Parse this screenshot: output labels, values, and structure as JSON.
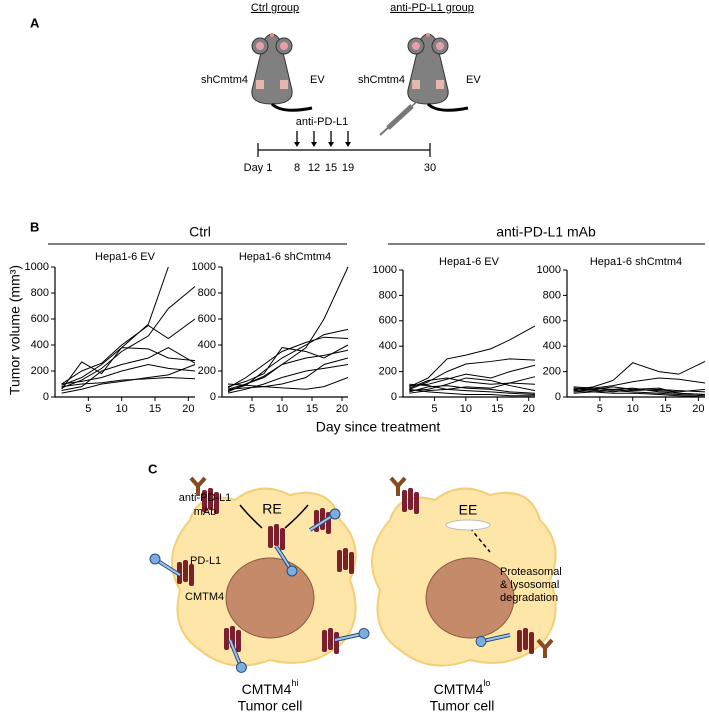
{
  "panel_a": {
    "label": "A",
    "ctrl_group": "Ctrl group",
    "anti_group": "anti-PD-L1 group",
    "left_mouse": [
      "shCmtm4",
      "EV"
    ],
    "right_mouse": [
      "shCmtm4",
      "EV"
    ],
    "treatment": "anti-PD-L1",
    "timeline": [
      "Day 1",
      "8",
      "12",
      "15",
      "19",
      "30"
    ]
  },
  "panel_b": {
    "label": "B",
    "groups": [
      "Ctrl",
      "anti-PD-L1 mAb"
    ],
    "y_label": "Tumor volume (mm³)",
    "x_label": "Day since treatment"
  },
  "chart_data": [
    {
      "type": "line",
      "title": "Hepa1-6 EV",
      "color": "#000000",
      "x": [
        1,
        4,
        7,
        10,
        14,
        17,
        21
      ],
      "xlim": [
        0,
        21
      ],
      "xticks": [
        5,
        10,
        15,
        20
      ],
      "ylim": [
        0,
        1000
      ],
      "yticks": [
        0,
        200,
        400,
        600,
        800,
        1000
      ],
      "series": [
        {
          "values": [
            90,
            150,
            250,
            380,
            560,
            1000,
            null
          ]
        },
        {
          "values": [
            70,
            130,
            220,
            350,
            470,
            680,
            850
          ]
        },
        {
          "values": [
            100,
            200,
            260,
            400,
            550,
            450,
            600
          ]
        },
        {
          "values": [
            60,
            270,
            180,
            380,
            370,
            300,
            280
          ]
        },
        {
          "values": [
            50,
            80,
            200,
            250,
            300,
            380,
            260
          ]
        },
        {
          "values": [
            100,
            120,
            150,
            200,
            250,
            220,
            200
          ]
        },
        {
          "values": [
            30,
            60,
            100,
            120,
            150,
            170,
            250
          ]
        },
        {
          "values": [
            80,
            100,
            110,
            130,
            140,
            150,
            140
          ]
        }
      ]
    },
    {
      "type": "line",
      "title": "Hepa1-6 shCmtm4",
      "color": "#000000",
      "x": [
        1,
        4,
        7,
        10,
        14,
        17,
        21
      ],
      "xlim": [
        0,
        21
      ],
      "xticks": [
        5,
        10,
        15,
        20
      ],
      "ylim": [
        0,
        1000
      ],
      "yticks": [
        0,
        200,
        400,
        600,
        800,
        1000
      ],
      "series": [
        {
          "values": [
            60,
            100,
            160,
            250,
            380,
            600,
            1000
          ]
        },
        {
          "values": [
            50,
            90,
            200,
            300,
            400,
            480,
            520
          ]
        },
        {
          "values": [
            70,
            150,
            250,
            350,
            420,
            460,
            450
          ]
        },
        {
          "values": [
            80,
            120,
            180,
            380,
            350,
            300,
            400
          ]
        },
        {
          "values": [
            40,
            100,
            150,
            250,
            300,
            320,
            360
          ]
        },
        {
          "values": [
            100,
            90,
            80,
            100,
            150,
            250,
            300
          ]
        },
        {
          "values": [
            60,
            70,
            80,
            70,
            60,
            80,
            150
          ]
        },
        {
          "values": [
            30,
            60,
            100,
            150,
            200,
            220,
            250
          ]
        }
      ]
    },
    {
      "type": "line",
      "title": "Hepa1-6 EV",
      "color": "#000000",
      "x": [
        1,
        4,
        7,
        10,
        14,
        17,
        21
      ],
      "xlim": [
        0,
        21
      ],
      "xticks": [
        5,
        10,
        15,
        20
      ],
      "ylim": [
        0,
        1000
      ],
      "yticks": [
        0,
        200,
        400,
        600,
        800,
        1000
      ],
      "series": [
        {
          "values": [
            80,
            150,
            300,
            330,
            380,
            450,
            560
          ]
        },
        {
          "values": [
            60,
            120,
            200,
            260,
            280,
            300,
            290
          ]
        },
        {
          "values": [
            90,
            100,
            140,
            180,
            150,
            200,
            250
          ]
        },
        {
          "values": [
            70,
            130,
            150,
            120,
            100,
            110,
            100
          ]
        },
        {
          "values": [
            50,
            60,
            100,
            150,
            130,
            90,
            50
          ]
        },
        {
          "values": [
            40,
            80,
            90,
            70,
            60,
            40,
            30
          ]
        },
        {
          "values": [
            100,
            90,
            60,
            50,
            40,
            30,
            20
          ]
        },
        {
          "values": [
            30,
            50,
            60,
            80,
            70,
            110,
            160
          ]
        },
        {
          "values": [
            60,
            40,
            30,
            20,
            20,
            10,
            10
          ]
        }
      ]
    },
    {
      "type": "line",
      "title": "Hepa1-6 shCmtm4",
      "color": "#000000",
      "x": [
        1,
        4,
        7,
        10,
        14,
        17,
        21
      ],
      "xlim": [
        0,
        21
      ],
      "xticks": [
        5,
        10,
        15,
        20
      ],
      "ylim": [
        0,
        1000
      ],
      "yticks": [
        0,
        200,
        400,
        600,
        800,
        1000
      ],
      "series": [
        {
          "values": [
            60,
            80,
            130,
            270,
            200,
            180,
            280
          ]
        },
        {
          "values": [
            50,
            70,
            90,
            120,
            150,
            140,
            110
          ]
        },
        {
          "values": [
            70,
            60,
            80,
            60,
            50,
            40,
            60
          ]
        },
        {
          "values": [
            40,
            50,
            60,
            70,
            40,
            30,
            20
          ]
        },
        {
          "values": [
            80,
            70,
            60,
            50,
            60,
            50,
            40
          ]
        },
        {
          "values": [
            30,
            40,
            50,
            40,
            30,
            20,
            10
          ]
        },
        {
          "values": [
            60,
            40,
            30,
            30,
            20,
            10,
            0
          ]
        },
        {
          "values": [
            50,
            60,
            40,
            60,
            70,
            30,
            20
          ]
        }
      ]
    }
  ],
  "panel_c": {
    "label": "C",
    "antibody": [
      "anti-PD-L1",
      "mAb"
    ],
    "pdl1": "PD-L1",
    "cmtm4": "CMTM4",
    "re": "RE",
    "ee": "EE",
    "degradation": [
      "Proteasomal",
      "& lysosomal",
      "degradation"
    ],
    "left_cell": {
      "name": "CMTM4",
      "sup": "hi",
      "sub": "Tumor cell"
    },
    "right_cell": {
      "name": "CMTM4",
      "sup": "lo",
      "sub": "Tumor cell"
    }
  }
}
